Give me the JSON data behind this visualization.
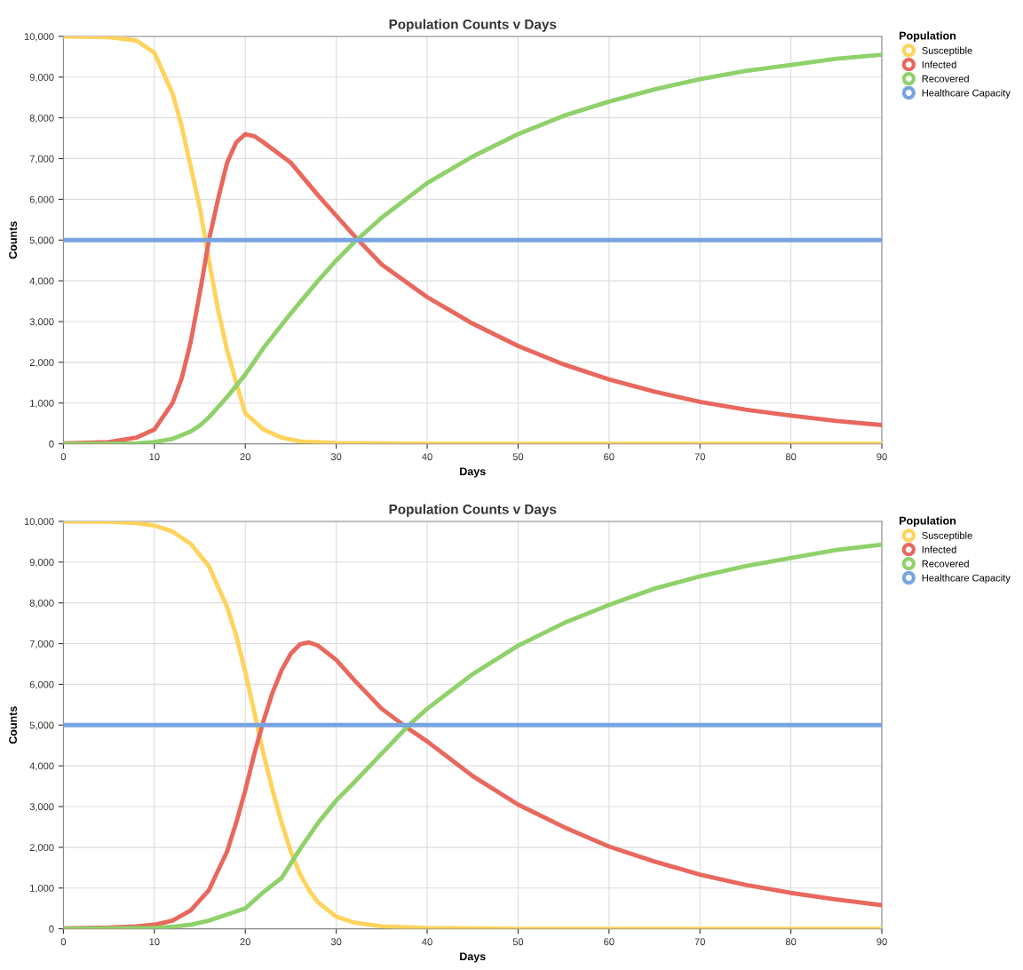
{
  "chart_data": [
    {
      "type": "line",
      "title": "Population Counts v Days",
      "xlabel": "Days",
      "ylabel": "Counts",
      "legend_title": "Population",
      "legend": "right",
      "grid": true,
      "marker": "none",
      "line_style": "solid",
      "xlim": [
        0,
        90
      ],
      "ylim": [
        0,
        10000
      ],
      "xticks": [
        0,
        10,
        20,
        30,
        40,
        50,
        60,
        70,
        80,
        90
      ],
      "yticks": [
        0,
        {
          "value": 1000,
          "label": "1,000"
        },
        {
          "value": 2000,
          "label": "2,000"
        },
        {
          "value": 3000,
          "label": "3,000"
        },
        {
          "value": 4000,
          "label": "4,000"
        },
        {
          "value": 5000,
          "label": "5,000"
        },
        {
          "value": 6000,
          "label": "6,000"
        },
        {
          "value": 7000,
          "label": "7,000"
        },
        {
          "value": 8000,
          "label": "8,000"
        },
        {
          "value": 9000,
          "label": "9,000"
        },
        {
          "value": 10000,
          "label": "10,000"
        }
      ],
      "series": [
        {
          "name": "Susceptible",
          "color": "#ffd35c",
          "x": [
            0,
            5,
            8,
            10,
            12,
            13,
            14,
            15,
            16,
            17,
            18,
            19,
            20,
            22,
            24,
            26,
            30,
            40,
            90
          ],
          "values": [
            10000,
            9980,
            9900,
            9600,
            8600,
            7800,
            6800,
            5800,
            4500,
            3300,
            2300,
            1500,
            750,
            350,
            150,
            60,
            20,
            0,
            0
          ]
        },
        {
          "name": "Infected",
          "color": "#e8685e",
          "x": [
            0,
            5,
            8,
            10,
            12,
            13,
            14,
            15,
            16,
            17,
            18,
            19,
            20,
            21,
            22,
            25,
            28,
            30,
            32,
            35,
            40,
            45,
            50,
            55,
            60,
            65,
            70,
            75,
            80,
            85,
            90
          ],
          "values": [
            10,
            40,
            150,
            350,
            1000,
            1600,
            2500,
            3700,
            5000,
            6000,
            6900,
            7400,
            7600,
            7550,
            7400,
            6900,
            6100,
            5600,
            5100,
            4400,
            3600,
            2950,
            2400,
            1950,
            1580,
            1280,
            1030,
            840,
            690,
            560,
            460
          ]
        },
        {
          "name": "Recovered",
          "color": "#8fd16a",
          "x": [
            0,
            8,
            10,
            12,
            14,
            15,
            16,
            18,
            20,
            22,
            25,
            28,
            30,
            32,
            35,
            40,
            45,
            50,
            55,
            60,
            65,
            70,
            75,
            80,
            85,
            90
          ],
          "values": [
            0,
            10,
            40,
            120,
            300,
            450,
            650,
            1150,
            1700,
            2350,
            3200,
            4000,
            4500,
            4950,
            5550,
            6400,
            7050,
            7600,
            8050,
            8400,
            8700,
            8950,
            9150,
            9300,
            9450,
            9550
          ]
        },
        {
          "name": "Healthcare Capacity",
          "color": "#78a4e0",
          "x": [
            0,
            90
          ],
          "values": [
            5000,
            5000
          ]
        }
      ]
    },
    {
      "type": "line",
      "title": "Population Counts v Days",
      "xlabel": "Days",
      "ylabel": "Counts",
      "legend_title": "Population",
      "legend": "right",
      "grid": true,
      "marker": "none",
      "line_style": "solid",
      "xlim": [
        0,
        90
      ],
      "ylim": [
        0,
        10000
      ],
      "xticks": [
        0,
        10,
        20,
        30,
        40,
        50,
        60,
        70,
        80,
        90
      ],
      "yticks": [
        0,
        {
          "value": 1000,
          "label": "1,000"
        },
        {
          "value": 2000,
          "label": "2,000"
        },
        {
          "value": 3000,
          "label": "3,000"
        },
        {
          "value": 4000,
          "label": "4,000"
        },
        {
          "value": 5000,
          "label": "5,000"
        },
        {
          "value": 6000,
          "label": "6,000"
        },
        {
          "value": 7000,
          "label": "7,000"
        },
        {
          "value": 8000,
          "label": "8,000"
        },
        {
          "value": 9000,
          "label": "9,000"
        },
        {
          "value": 10000,
          "label": "10,000"
        }
      ],
      "series": [
        {
          "name": "Susceptible",
          "color": "#ffd35c",
          "x": [
            0,
            5,
            8,
            10,
            12,
            14,
            16,
            18,
            19,
            20,
            21,
            22,
            23,
            24,
            25,
            26,
            27,
            28,
            30,
            32,
            35,
            40,
            50,
            90
          ],
          "values": [
            10000,
            9990,
            9960,
            9900,
            9750,
            9450,
            8900,
            7900,
            7200,
            6300,
            5300,
            4300,
            3400,
            2600,
            1900,
            1350,
            950,
            650,
            300,
            150,
            60,
            20,
            0,
            0
          ]
        },
        {
          "name": "Infected",
          "color": "#e8685e",
          "x": [
            0,
            5,
            8,
            10,
            12,
            14,
            16,
            18,
            19,
            20,
            21,
            22,
            23,
            24,
            25,
            26,
            27,
            28,
            30,
            32,
            35,
            38,
            40,
            45,
            50,
            55,
            60,
            65,
            70,
            75,
            80,
            85,
            90
          ],
          "values": [
            10,
            30,
            60,
            100,
            200,
            450,
            950,
            1900,
            2600,
            3400,
            4300,
            5100,
            5800,
            6350,
            6750,
            6980,
            7030,
            6950,
            6600,
            6100,
            5400,
            4900,
            4600,
            3750,
            3050,
            2500,
            2020,
            1650,
            1330,
            1080,
            880,
            720,
            580
          ]
        },
        {
          "name": "Recovered",
          "color": "#8fd16a",
          "x": [
            0,
            10,
            12,
            14,
            16,
            18,
            20,
            22,
            24,
            25,
            26,
            28,
            30,
            32,
            35,
            38,
            40,
            45,
            50,
            55,
            60,
            65,
            70,
            75,
            80,
            85,
            90
          ],
          "values": [
            0,
            20,
            50,
            100,
            200,
            350,
            500,
            900,
            1250,
            1600,
            1950,
            2600,
            3150,
            3600,
            4300,
            5000,
            5400,
            6250,
            6950,
            7500,
            7950,
            8350,
            8650,
            8900,
            9100,
            9300,
            9430
          ]
        },
        {
          "name": "Healthcare Capacity",
          "color": "#78a4e0",
          "x": [
            0,
            90
          ],
          "values": [
            5000,
            5000
          ]
        }
      ]
    }
  ]
}
